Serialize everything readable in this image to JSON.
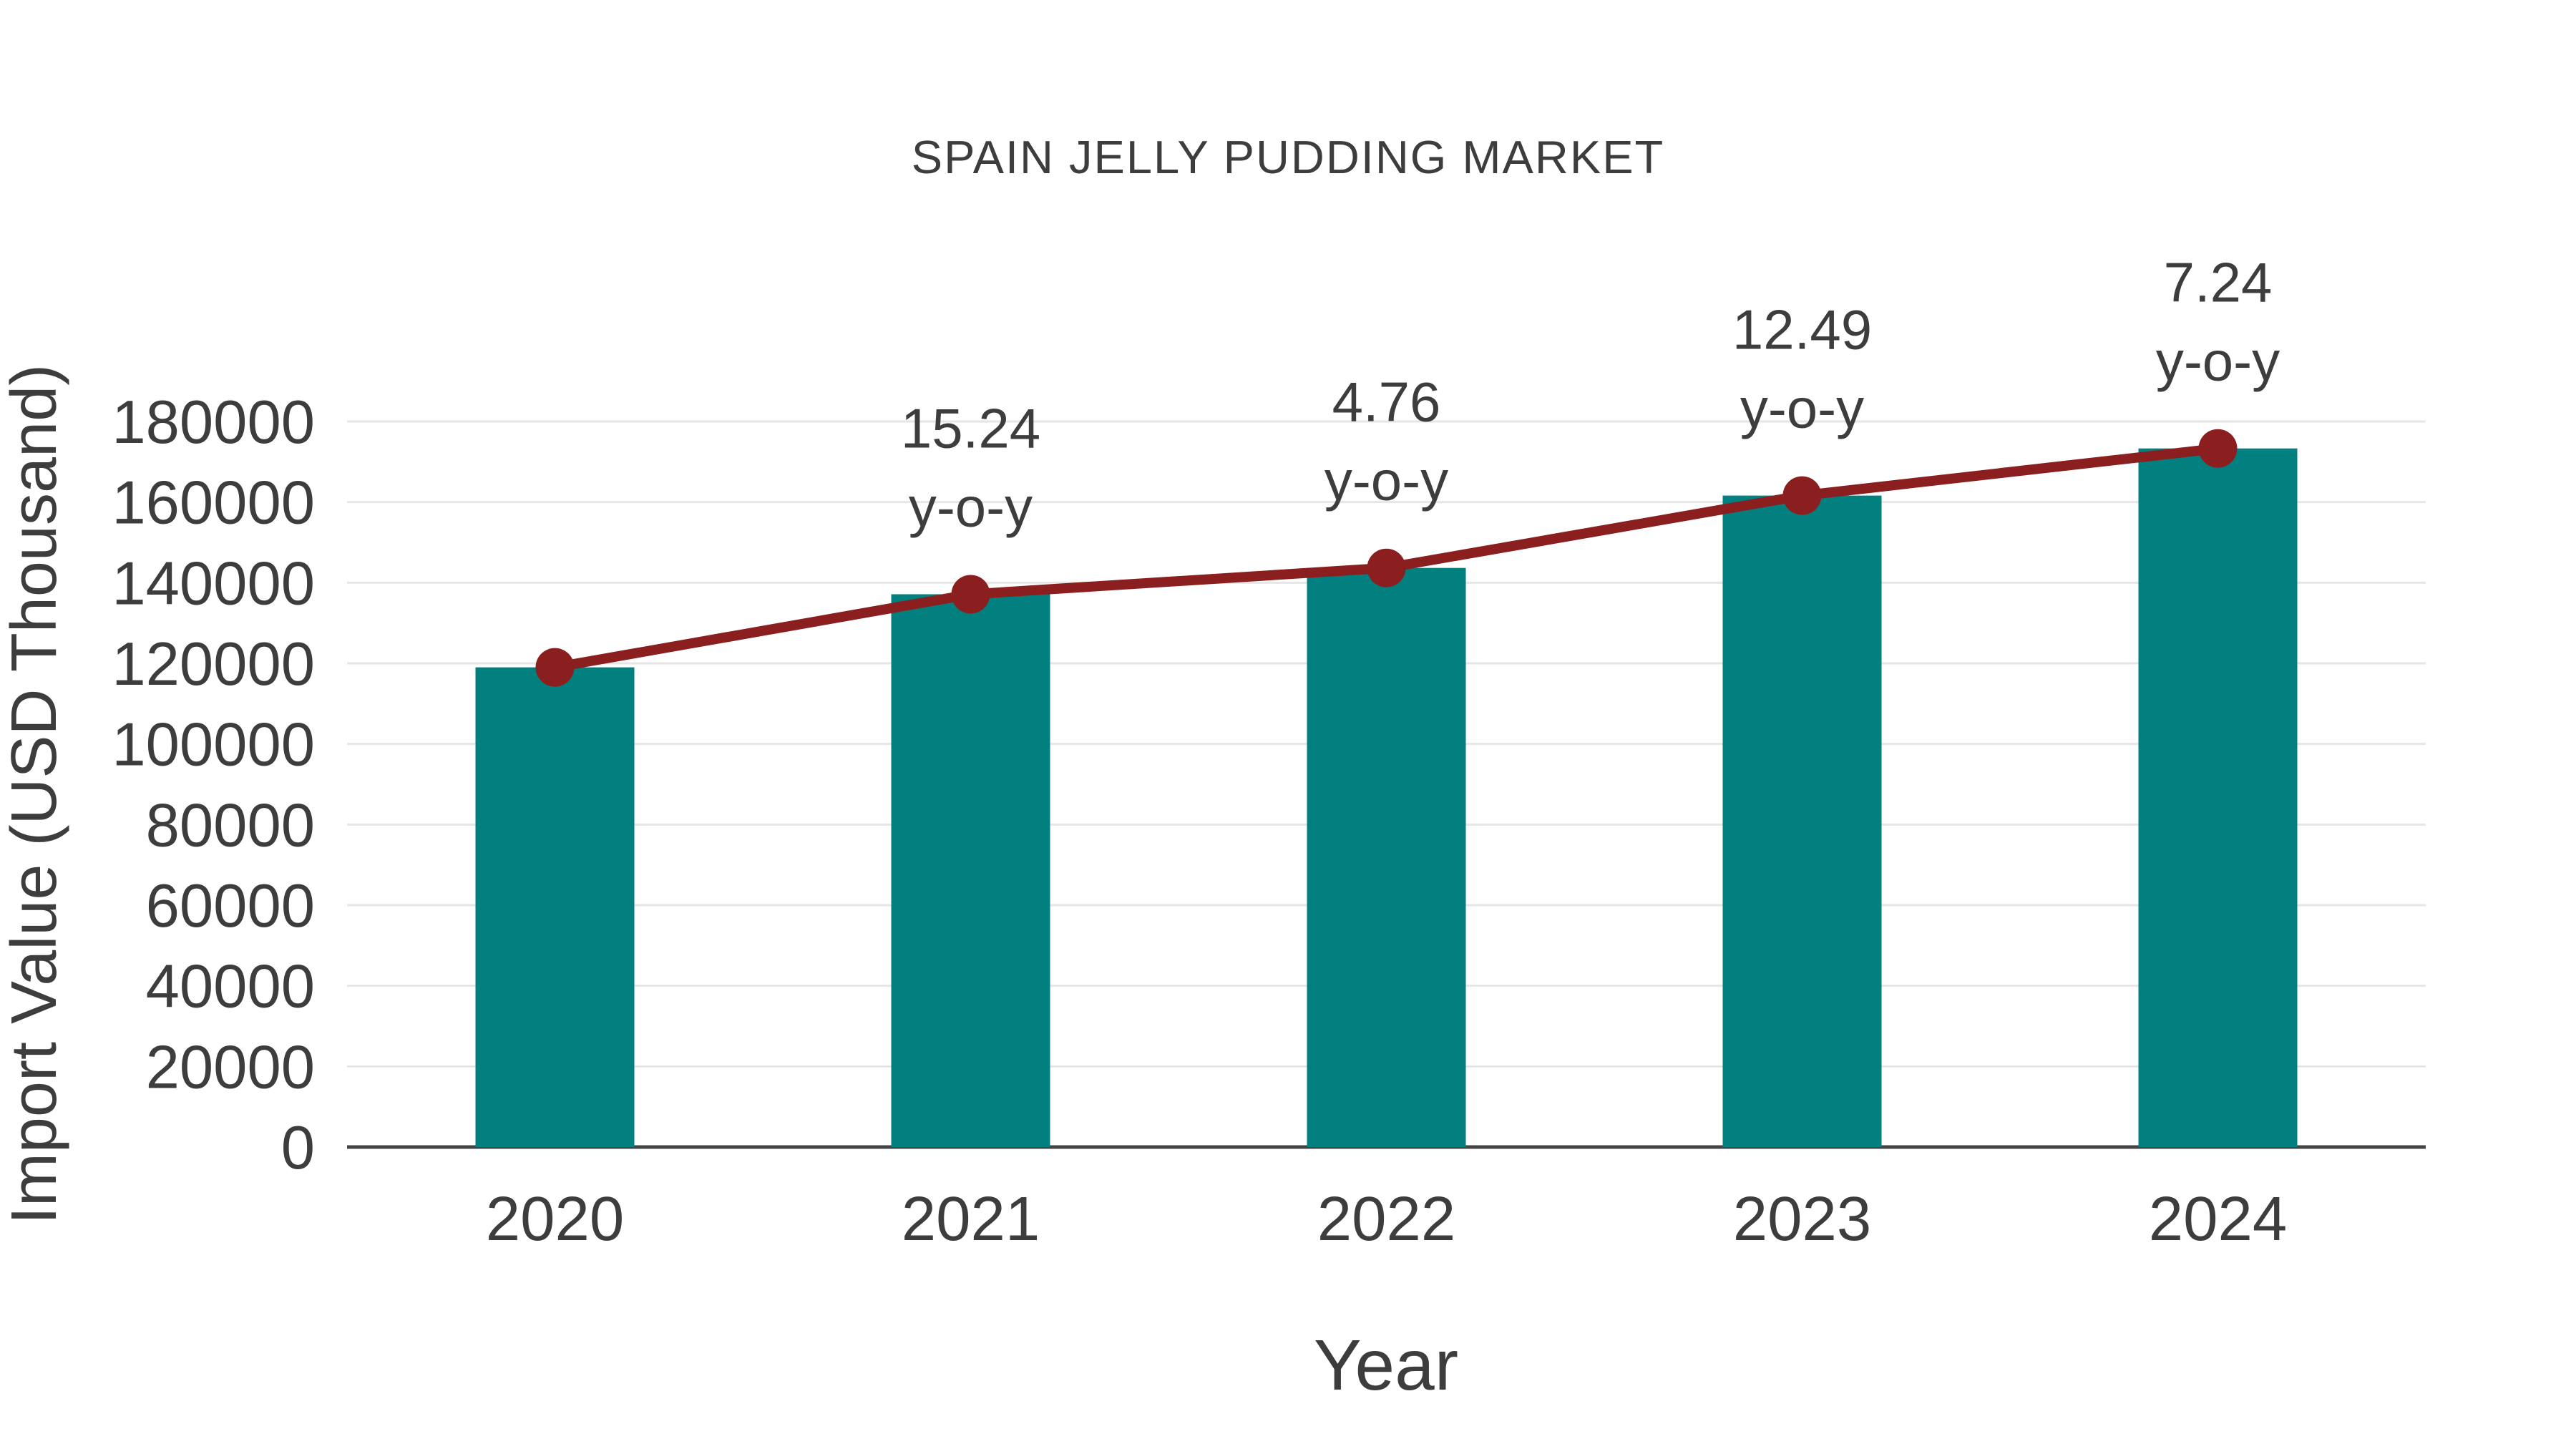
{
  "chart_data": {
    "type": "bar",
    "title": "SPAIN JELLY PUDDING MARKET",
    "xlabel": "Year",
    "ylabel": "Import Value (USD Thousand)",
    "categories": [
      "2020",
      "2021",
      "2022",
      "2023",
      "2024"
    ],
    "series": [
      {
        "name": "Import Value (USD Thousand)",
        "type": "bar",
        "color": "#028080",
        "values": [
          119000,
          137136,
          143663,
          161608,
          173308
        ]
      },
      {
        "name": "y-o-y growth",
        "type": "line",
        "color": "#8B1E1E",
        "values": [
          119000,
          137136,
          143663,
          161608,
          173308
        ],
        "growth_percent": [
          null,
          15.24,
          4.76,
          12.49,
          7.24
        ]
      }
    ],
    "annotations": [
      {
        "index": 1,
        "lines": [
          "15.24",
          "y-o-y"
        ]
      },
      {
        "index": 2,
        "lines": [
          "4.76",
          "y-o-y"
        ]
      },
      {
        "index": 3,
        "lines": [
          "12.49",
          "y-o-y"
        ]
      },
      {
        "index": 4,
        "lines": [
          "7.24",
          "y-o-y"
        ]
      }
    ],
    "ylim": [
      0,
      180000
    ],
    "ytick_step": 20000,
    "yticks": [
      "0",
      "20000",
      "40000",
      "60000",
      "80000",
      "100000",
      "120000",
      "140000",
      "160000",
      "180000"
    ],
    "grid": true,
    "legend_position": "none"
  },
  "colors": {
    "bar": "#028080",
    "line": "#8B1E1E",
    "marker": "#8B1E1E",
    "text": "#3d3d3d",
    "gridline": "#e6e6e6",
    "axis": "#444444",
    "background": "#ffffff"
  }
}
